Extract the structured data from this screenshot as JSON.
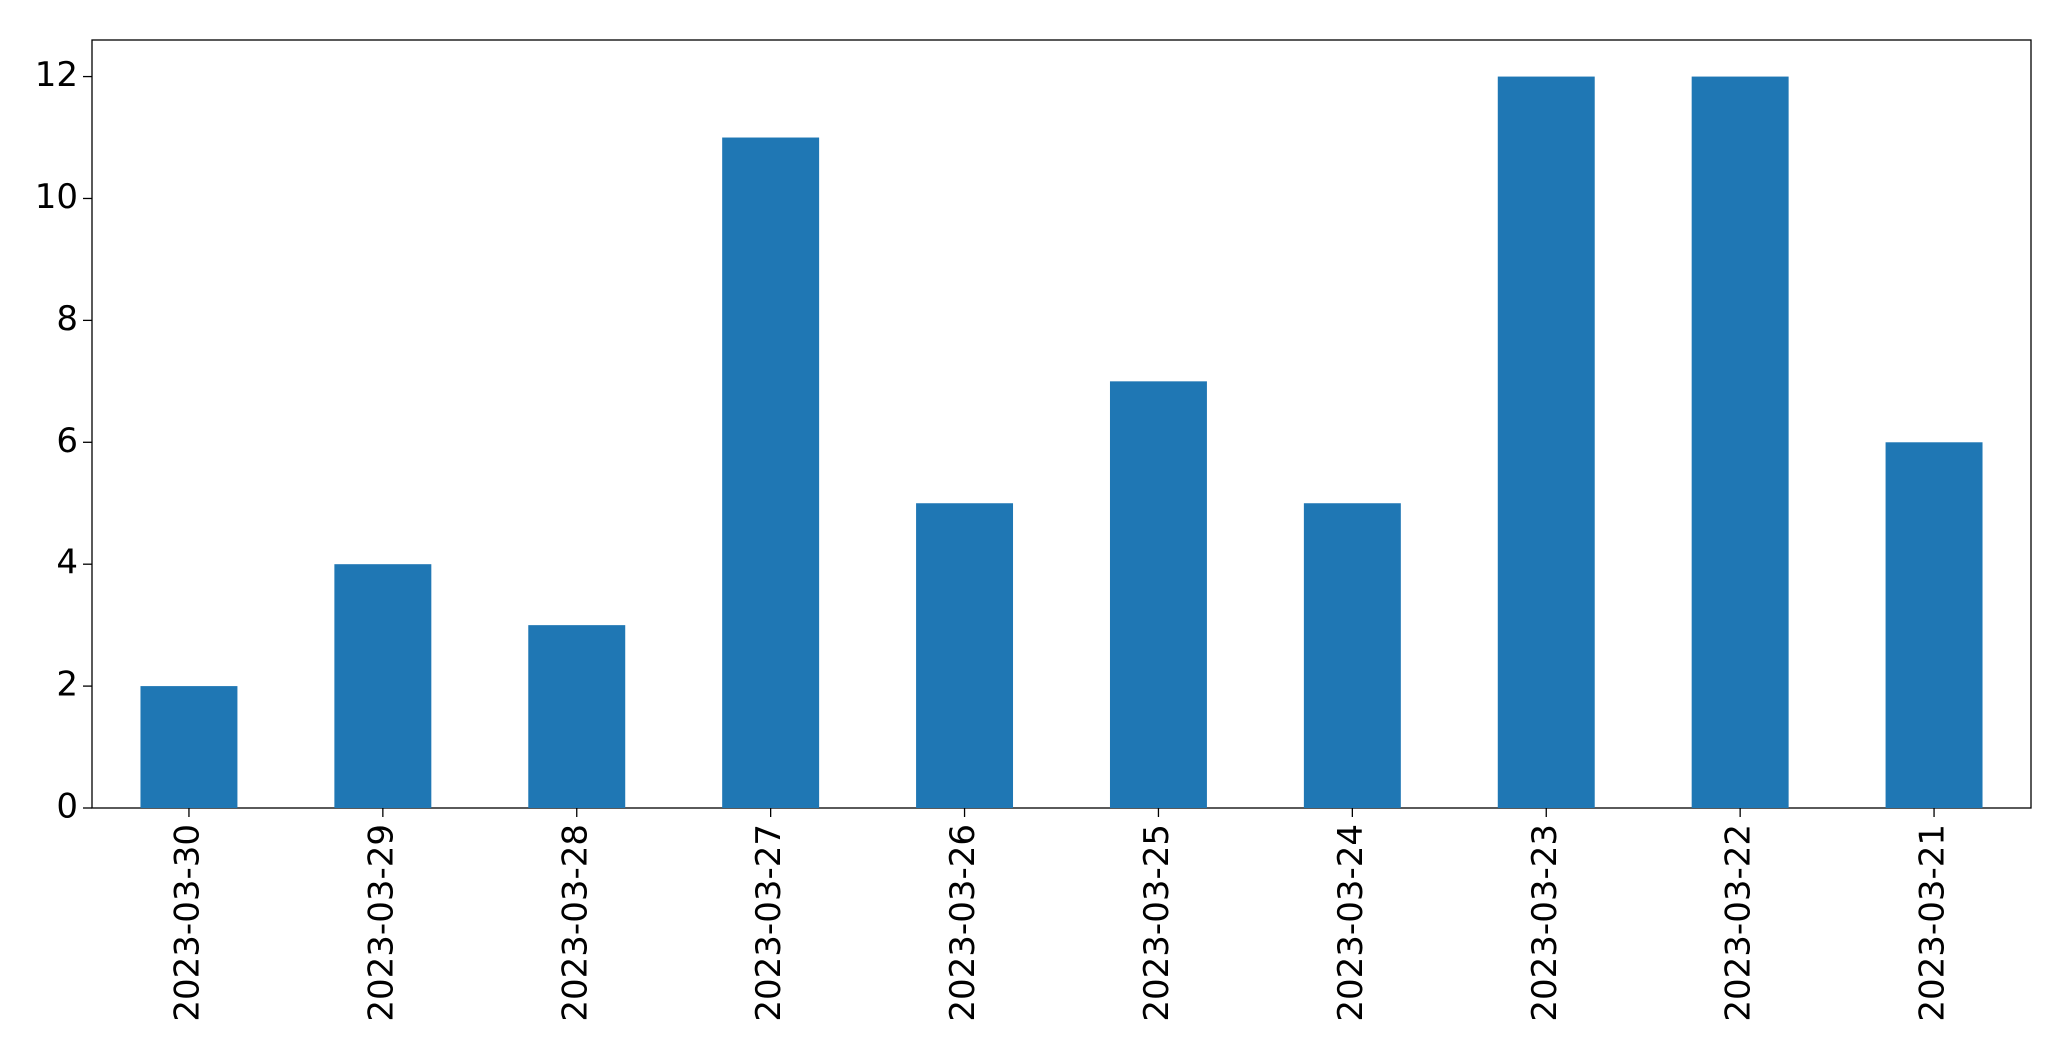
{
  "chart_data": {
    "type": "bar",
    "categories": [
      "2023-03-30",
      "2023-03-29",
      "2023-03-28",
      "2023-03-27",
      "2023-03-26",
      "2023-03-25",
      "2023-03-24",
      "2023-03-23",
      "2023-03-22",
      "2023-03-21"
    ],
    "values": [
      2,
      4,
      3,
      11,
      5,
      7,
      5,
      12,
      12,
      6
    ],
    "color": "#1f77b4",
    "ylim": [
      0,
      12.6
    ],
    "yticks": [
      0,
      2,
      4,
      6,
      8,
      10,
      12
    ],
    "grid": false
  }
}
